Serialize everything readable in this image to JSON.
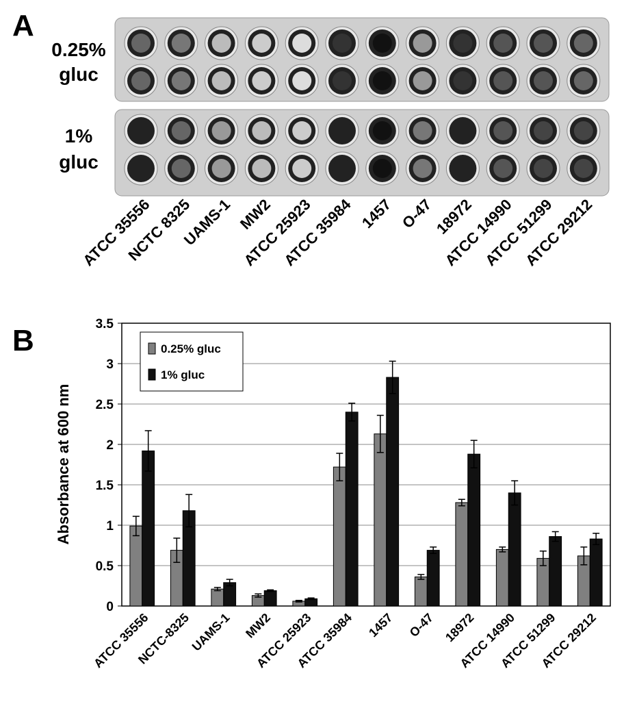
{
  "panel_a": {
    "label": "A",
    "row_labels": [
      [
        "0.25%",
        "gluc"
      ],
      [
        "1%",
        "gluc"
      ]
    ],
    "strains": [
      "ATCC 35556",
      "NCTC 8325",
      "UAMS-1",
      "MW2",
      "ATCC 25923",
      "ATCC 35984",
      "1457",
      "O-47",
      "18972",
      "ATCC 14990",
      "ATCC 51299",
      "ATCC 29212"
    ]
  },
  "chart_data": {
    "type": "bar",
    "panel_label": "B",
    "ylabel": "Absorbance at 600 nm",
    "categories": [
      "ATCC 35556",
      "NCTC-8325",
      "UAMS-1",
      "MW2",
      "ATCC 25923",
      "ATCC 35984",
      "1457",
      "O-47",
      "18972",
      "ATCC 14990",
      "ATCC 51299",
      "ATCC 29212"
    ],
    "series": [
      {
        "name": "0.25% gluc",
        "color": "#808080",
        "values": [
          0.99,
          0.69,
          0.21,
          0.13,
          0.06,
          1.72,
          2.13,
          0.36,
          1.28,
          0.7,
          0.59,
          0.62
        ],
        "errors": [
          0.12,
          0.15,
          0.02,
          0.02,
          0.01,
          0.17,
          0.23,
          0.03,
          0.04,
          0.03,
          0.09,
          0.11
        ]
      },
      {
        "name": "1% gluc",
        "color": "#111111",
        "values": [
          1.92,
          1.18,
          0.29,
          0.19,
          0.09,
          2.4,
          2.83,
          0.69,
          1.88,
          1.4,
          0.86,
          0.83
        ],
        "errors": [
          0.25,
          0.2,
          0.04,
          0.01,
          0.01,
          0.11,
          0.2,
          0.04,
          0.17,
          0.15,
          0.06,
          0.07
        ]
      }
    ],
    "ylim": [
      0,
      3.5
    ],
    "yticks": [
      0,
      0.5,
      1,
      1.5,
      2,
      2.5,
      3,
      3.5
    ],
    "grid": true,
    "legend": "top-left"
  }
}
